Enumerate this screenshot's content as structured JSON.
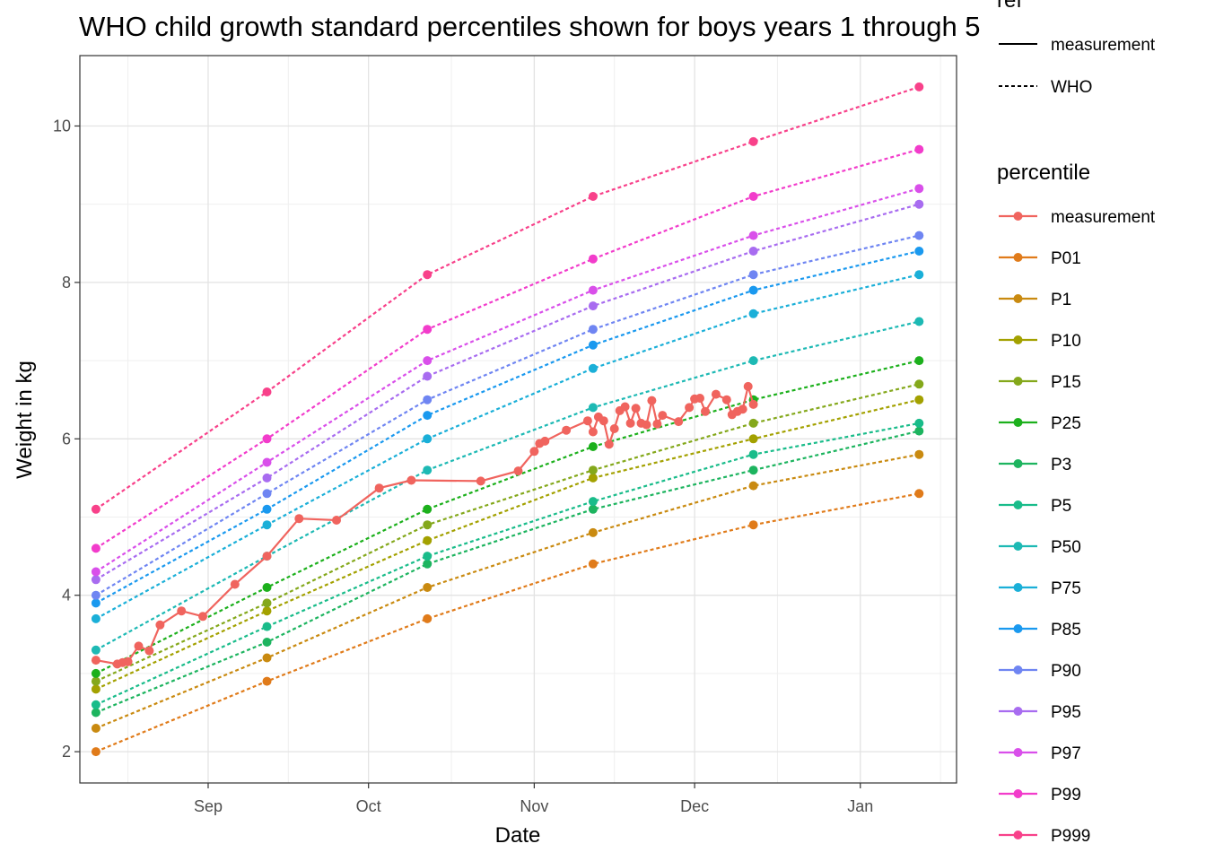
{
  "chart_data": {
    "type": "line",
    "title": "WHO child growth standard percentiles shown for boys years 1 through 5",
    "xlabel": "Date",
    "ylabel": "Weight in kg",
    "x_ticks": [
      {
        "date": "2019-09-01",
        "label": "Sep"
      },
      {
        "date": "2019-10-01",
        "label": "Oct"
      },
      {
        "date": "2019-11-01",
        "label": "Nov"
      },
      {
        "date": "2019-12-01",
        "label": "Dec"
      },
      {
        "date": "2020-01-01",
        "label": "Jan"
      }
    ],
    "xlim": [
      "2019-08-08",
      "2020-01-19"
    ],
    "y_ticks": [
      2,
      4,
      6,
      8,
      10
    ],
    "ylim": [
      1.6,
      10.9
    ],
    "grid": true,
    "legend_position": "right",
    "legends": [
      {
        "title": "ref",
        "items": [
          {
            "label": "measurement",
            "linetype": "solid"
          },
          {
            "label": "WHO",
            "linetype": "dashed"
          }
        ]
      },
      {
        "title": "percentile",
        "items": [
          {
            "label": "measurement",
            "color": "#F8766D"
          },
          {
            "label": "P01",
            "color": "#E18A00"
          },
          {
            "label": "P1",
            "color": "#BE9C00"
          },
          {
            "label": "P10",
            "color": "#8CAB00"
          },
          {
            "label": "P15",
            "color": "#24B700"
          },
          {
            "label": "P25",
            "color": "#00BE70"
          },
          {
            "label": "P3",
            "color": "#00C1AB"
          },
          {
            "label": "P5",
            "color": "#00BBDA"
          },
          {
            "label": "P50",
            "color": "#00ACFC"
          },
          {
            "label": "P75",
            "color": "#8B93FF"
          },
          {
            "label": "P85",
            "color": "#D575FE"
          },
          {
            "label": "P90",
            "color": "#F962DD"
          },
          {
            "label": "P95",
            "color": "#FF65AC"
          },
          {
            "label": "P97",
            "color": "#F8766D"
          },
          {
            "label": "P99",
            "color": "#E18A00"
          },
          {
            "label": "P999",
            "color": "#BE9C00"
          }
        ]
      }
    ],
    "who_dates": [
      "2019-08-11",
      "2019-09-12",
      "2019-10-12",
      "2019-11-12",
      "2019-12-12",
      "2020-01-12"
    ],
    "series": [
      {
        "name": "P01",
        "ref": "WHO",
        "color": "#E07B1A",
        "values": [
          2.0,
          2.9,
          3.7,
          4.4,
          4.9,
          5.3
        ]
      },
      {
        "name": "P1",
        "ref": "WHO",
        "color": "#C98A10",
        "values": [
          2.3,
          3.2,
          4.1,
          4.8,
          5.4,
          5.8
        ]
      },
      {
        "name": "P10",
        "ref": "WHO",
        "color": "#A3A100",
        "values": [
          2.8,
          3.8,
          4.7,
          5.5,
          6.0,
          6.5
        ]
      },
      {
        "name": "P15",
        "ref": "WHO",
        "color": "#84A81B",
        "values": [
          2.9,
          3.9,
          4.9,
          5.6,
          6.2,
          6.7
        ]
      },
      {
        "name": "P25",
        "ref": "WHO",
        "color": "#1CB01C",
        "values": [
          3.0,
          4.1,
          5.1,
          5.9,
          6.5,
          7.0
        ]
      },
      {
        "name": "P3",
        "ref": "WHO",
        "color": "#1DB45F",
        "values": [
          2.5,
          3.4,
          4.4,
          5.1,
          5.6,
          6.1
        ]
      },
      {
        "name": "P5",
        "ref": "WHO",
        "color": "#19BC8A",
        "values": [
          2.6,
          3.6,
          4.5,
          5.2,
          5.8,
          6.2
        ]
      },
      {
        "name": "P50",
        "ref": "WHO",
        "color": "#1DB9B4",
        "values": [
          3.3,
          4.5,
          5.6,
          6.4,
          7.0,
          7.5
        ]
      },
      {
        "name": "P75",
        "ref": "WHO",
        "color": "#1AAFD8",
        "values": [
          3.7,
          4.9,
          6.0,
          6.9,
          7.6,
          8.1
        ]
      },
      {
        "name": "P85",
        "ref": "WHO",
        "color": "#1A99EF",
        "values": [
          3.9,
          5.1,
          6.3,
          7.2,
          7.9,
          8.4
        ]
      },
      {
        "name": "P90",
        "ref": "WHO",
        "color": "#6F85F2",
        "values": [
          4.0,
          5.3,
          6.5,
          7.4,
          8.1,
          8.6
        ]
      },
      {
        "name": "P95",
        "ref": "WHO",
        "color": "#A86CF0",
        "values": [
          4.2,
          5.5,
          6.8,
          7.7,
          8.4,
          9.0
        ]
      },
      {
        "name": "P97",
        "ref": "WHO",
        "color": "#D94FEA",
        "values": [
          4.3,
          5.7,
          7.0,
          7.9,
          8.6,
          9.2
        ]
      },
      {
        "name": "P99",
        "ref": "WHO",
        "color": "#F23CCB",
        "values": [
          4.6,
          6.0,
          7.4,
          8.3,
          9.1,
          9.7
        ]
      },
      {
        "name": "P999",
        "ref": "WHO",
        "color": "#F8418A",
        "values": [
          5.1,
          6.6,
          8.1,
          9.1,
          9.8,
          10.5
        ]
      },
      {
        "name": "measurement",
        "ref": "measurement",
        "color": "#F0645E",
        "dates": [
          "2019-08-11",
          "2019-08-15",
          "2019-08-16",
          "2019-08-17",
          "2019-08-19",
          "2019-08-21",
          "2019-08-23",
          "2019-08-27",
          "2019-08-31",
          "2019-09-06",
          "2019-09-12",
          "2019-09-18",
          "2019-09-25",
          "2019-10-03",
          "2019-10-09",
          "2019-10-22",
          "2019-10-29",
          "2019-11-01",
          "2019-11-02",
          "2019-11-03",
          "2019-11-07",
          "2019-11-11",
          "2019-11-12",
          "2019-11-13",
          "2019-11-14",
          "2019-11-15",
          "2019-11-16",
          "2019-11-17",
          "2019-11-18",
          "2019-11-19",
          "2019-11-20",
          "2019-11-21",
          "2019-11-22",
          "2019-11-23",
          "2019-11-24",
          "2019-11-25",
          "2019-11-28",
          "2019-11-30",
          "2019-12-01",
          "2019-12-02",
          "2019-12-03",
          "2019-12-05",
          "2019-12-07",
          "2019-12-08",
          "2019-12-09",
          "2019-12-10",
          "2019-12-11",
          "2019-12-12"
        ],
        "values": [
          3.17,
          3.12,
          3.14,
          3.15,
          3.35,
          3.29,
          3.62,
          3.8,
          3.73,
          4.14,
          4.5,
          4.98,
          4.96,
          5.37,
          5.47,
          5.46,
          5.59,
          5.84,
          5.94,
          5.97,
          6.11,
          6.23,
          6.09,
          6.28,
          6.23,
          5.93,
          6.13,
          6.36,
          6.41,
          6.2,
          6.39,
          6.2,
          6.18,
          6.49,
          6.19,
          6.3,
          6.22,
          6.4,
          6.51,
          6.52,
          6.35,
          6.57,
          6.5,
          6.31,
          6.35,
          6.38,
          6.67,
          6.44
        ]
      }
    ]
  }
}
